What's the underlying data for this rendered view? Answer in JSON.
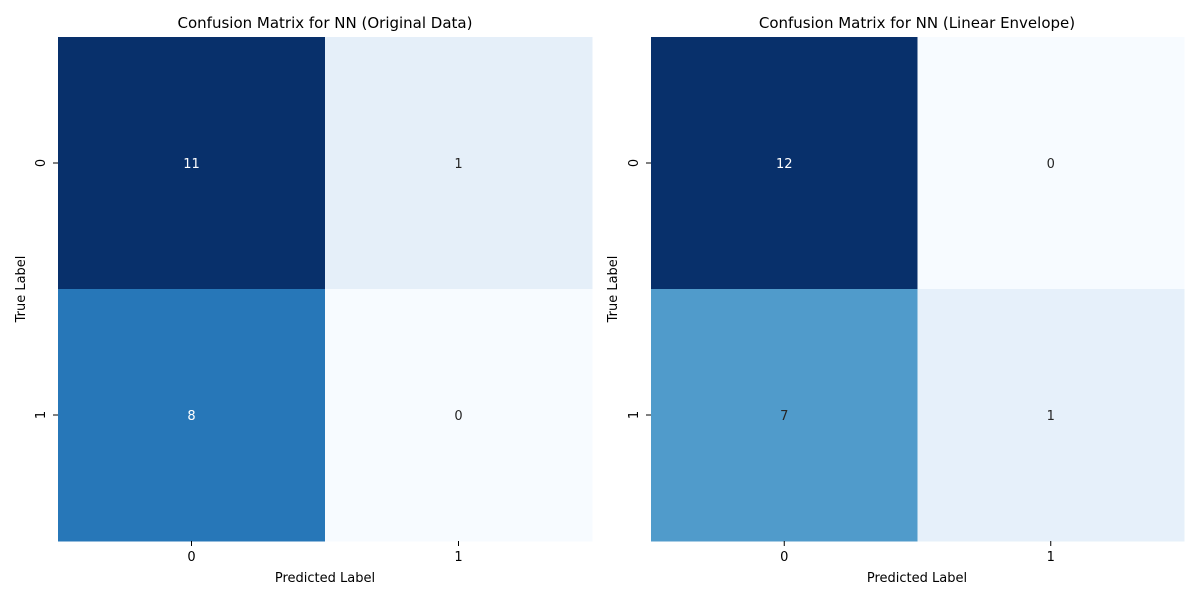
{
  "colormap": {
    "name": "Blues",
    "low": "#f7fbff",
    "high": "#08306b"
  },
  "chart_data": [
    {
      "type": "heatmap",
      "title": "Confusion Matrix for NN (Original Data)",
      "xlabel": "Predicted Label",
      "ylabel": "True Label",
      "x_categories": [
        "0",
        "1"
      ],
      "y_categories": [
        "0",
        "1"
      ],
      "values": [
        [
          11,
          1
        ],
        [
          8,
          0
        ]
      ],
      "colorbar": false
    },
    {
      "type": "heatmap",
      "title": "Confusion Matrix for NN (Linear Envelope)",
      "xlabel": "Predicted Label",
      "ylabel": "True Label",
      "x_categories": [
        "0",
        "1"
      ],
      "y_categories": [
        "0",
        "1"
      ],
      "values": [
        [
          12,
          0
        ],
        [
          7,
          1
        ]
      ],
      "colorbar": false
    }
  ]
}
